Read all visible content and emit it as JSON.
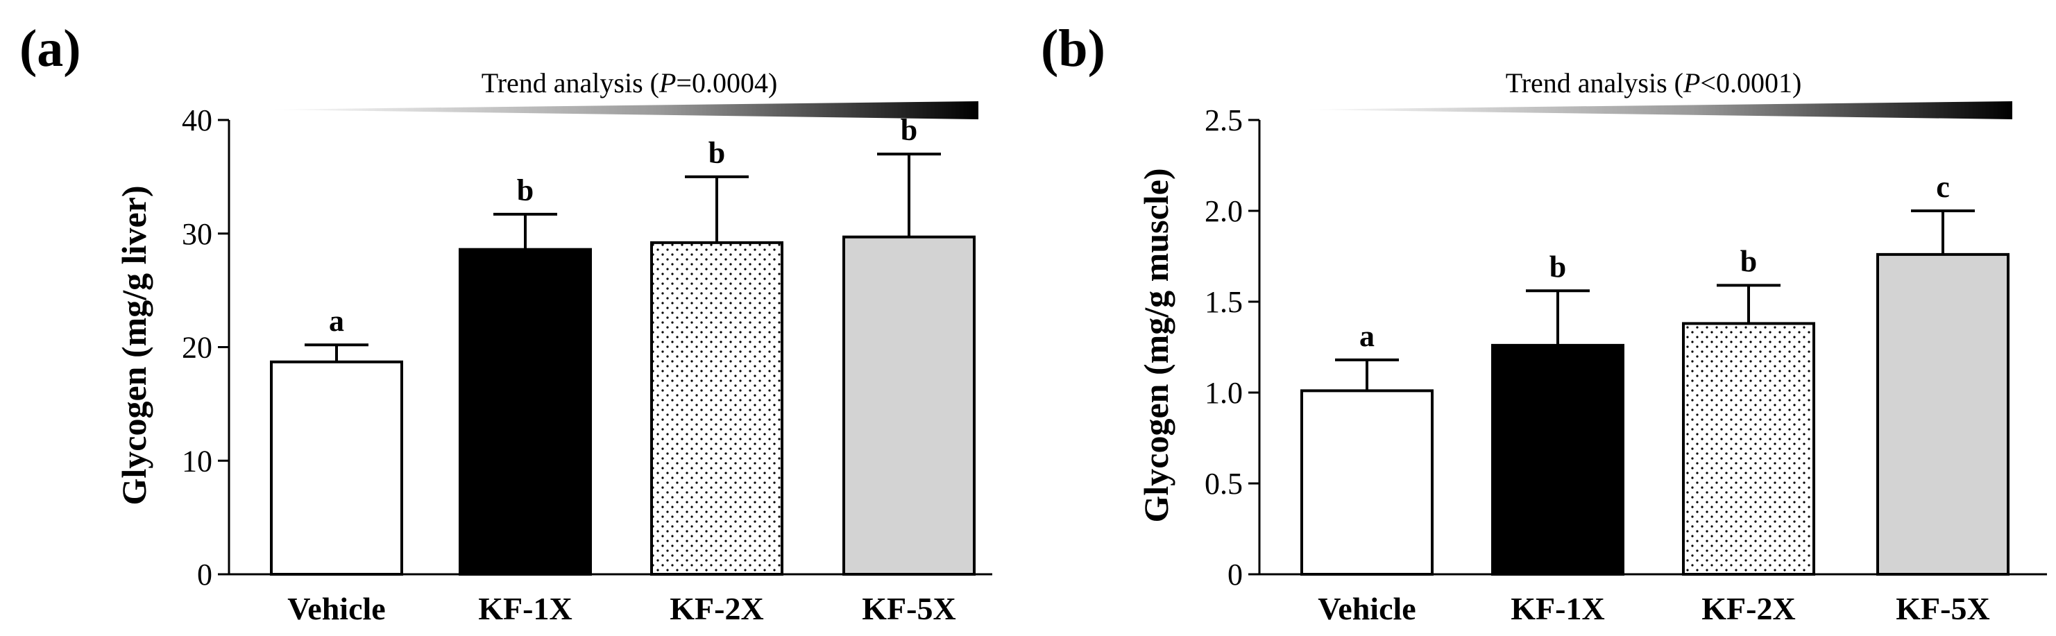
{
  "chart_data": [
    {
      "type": "bar",
      "panel_label": "(a)",
      "categories": [
        "Vehicle",
        "KF-1X",
        "KF-2X",
        "KF-5X"
      ],
      "values": [
        18.7,
        28.6,
        29.2,
        29.7
      ],
      "errors": [
        1.5,
        3.1,
        5.8,
        7.3
      ],
      "significance": [
        "a",
        "b",
        "b",
        "b"
      ],
      "fills": [
        "white",
        "black",
        "dotted",
        "gray"
      ],
      "ylabel": "Glycogen (mg/g liver)",
      "ylim": [
        0,
        40
      ],
      "yticks": [
        "0",
        "10",
        "20",
        "30",
        "40"
      ],
      "trend": {
        "prefix": "Trend analysis (",
        "p_symbol": "P",
        "p_value": "=0.0004",
        "suffix": ")"
      }
    },
    {
      "type": "bar",
      "panel_label": "(b)",
      "categories": [
        "Vehicle",
        "KF-1X",
        "KF-2X",
        "KF-5X"
      ],
      "values": [
        1.01,
        1.26,
        1.38,
        1.76
      ],
      "errors": [
        0.17,
        0.3,
        0.21,
        0.24
      ],
      "significance": [
        "a",
        "b",
        "b",
        "c"
      ],
      "fills": [
        "white",
        "black",
        "dotted",
        "gray"
      ],
      "ylabel": "Glycogen (mg/g muscle)",
      "ylim": [
        0,
        2.5
      ],
      "yticks": [
        "0",
        "0.5",
        "1.0",
        "1.5",
        "2.0",
        "2.5"
      ],
      "trend": {
        "prefix": "Trend analysis (",
        "p_symbol": "P",
        "p_value": "<0.0001",
        "suffix": ")"
      }
    }
  ],
  "colors": {
    "gray_fill": "#d3d3d3",
    "black_fill": "#000000",
    "white_fill": "#ffffff"
  }
}
